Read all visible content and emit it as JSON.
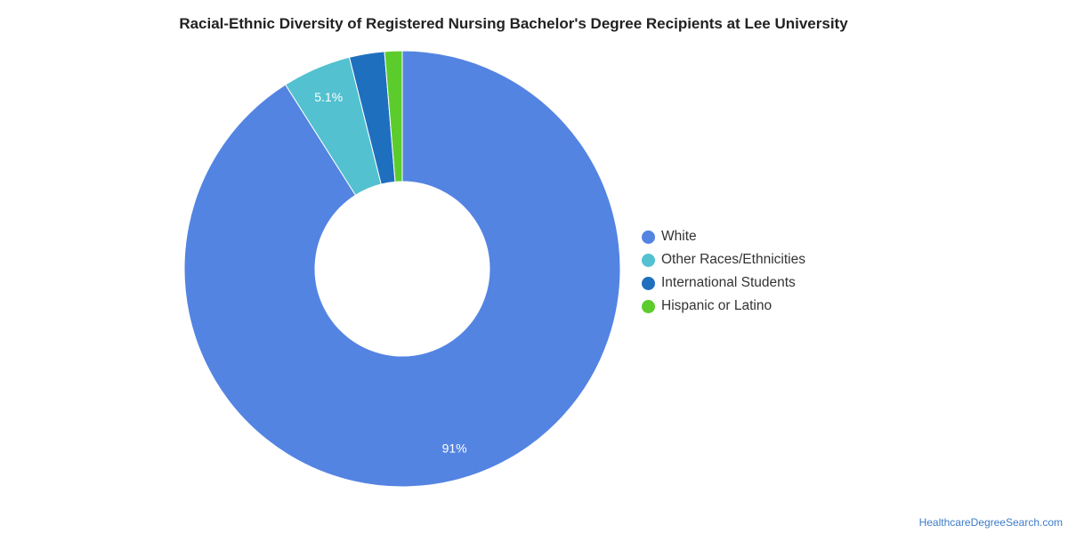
{
  "chart_data": {
    "type": "pie",
    "title": "Racial-Ethnic Diversity of Registered Nursing Bachelor's Degree Recipients at Lee University",
    "donut": true,
    "legend_position": "right",
    "slices": [
      {
        "label": "White",
        "value": 91,
        "data_label": "91%",
        "color": "#5484e2"
      },
      {
        "label": "Other Races/Ethnicities",
        "value": 5.1,
        "data_label": "5.1%",
        "color": "#53c1cf"
      },
      {
        "label": "International Students",
        "value": 2.6,
        "data_label": "",
        "color": "#1f6fbf"
      },
      {
        "label": "Hispanic or Latino",
        "value": 1.3,
        "data_label": "",
        "color": "#5ccc2c"
      }
    ]
  },
  "source": "HealthcareDegreeSearch.com"
}
